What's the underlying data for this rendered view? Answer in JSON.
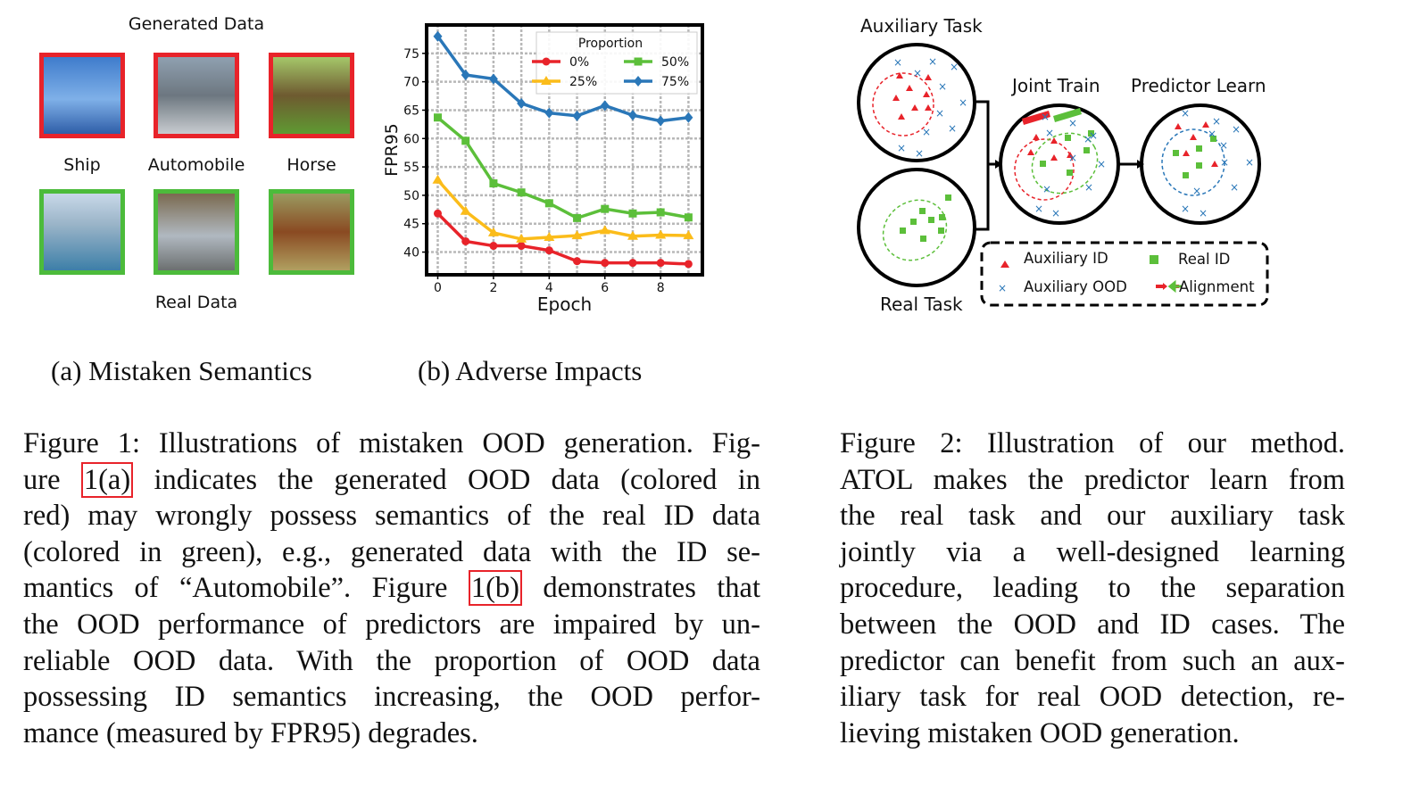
{
  "fig_a": {
    "title_top": "Generated Data",
    "title_bottom": "Real Data",
    "labels": [
      "Ship",
      "Automobile",
      "Horse"
    ],
    "generated_border_color": "#e8232a",
    "real_border_color": "#4cbb3b",
    "subcaption": "(a)  Mistaken Semantics"
  },
  "fig_b": {
    "subcaption": "(b)  Adverse Impacts"
  },
  "chart_data": {
    "type": "line",
    "xlabel": "Epoch",
    "ylabel": "FPR95",
    "x": [
      0,
      1,
      2,
      3,
      4,
      5,
      6,
      7,
      8,
      9
    ],
    "xticks": [
      0,
      2,
      4,
      6,
      8
    ],
    "yticks": [
      40,
      45,
      50,
      55,
      60,
      65,
      70,
      75
    ],
    "xlim": [
      -0.4,
      9.5
    ],
    "ylim": [
      36,
      80
    ],
    "grid": true,
    "legend_title": "Proportion",
    "legend_placement": "top-right",
    "series": [
      {
        "name": "0%",
        "color": "#e8232a",
        "marker": "circle",
        "values": [
          46.8,
          41.9,
          41.1,
          41.1,
          40.3,
          38.4,
          38.1,
          38.1,
          38.1,
          37.9
        ]
      },
      {
        "name": "25%",
        "color": "#fbbc1a",
        "marker": "triangle",
        "values": [
          52.7,
          47.2,
          43.4,
          42.3,
          42.6,
          42.9,
          43.8,
          42.8,
          43.0,
          42.9
        ]
      },
      {
        "name": "50%",
        "color": "#5cbf3a",
        "marker": "square",
        "values": [
          63.7,
          59.6,
          52.1,
          50.5,
          48.6,
          46.0,
          47.6,
          46.8,
          47.0,
          46.1
        ]
      },
      {
        "name": "75%",
        "color": "#2a77b8",
        "marker": "diamond",
        "values": [
          78.0,
          71.2,
          70.5,
          66.2,
          64.5,
          64.0,
          65.8,
          64.1,
          63.1,
          63.7
        ]
      }
    ]
  },
  "fig2": {
    "auxiliary_task": "Auxiliary Task",
    "real_task": "Real Task",
    "joint_train": "Joint Train",
    "predictor_learn": "Predictor Learn",
    "legend": {
      "aux_id": "Auxiliary ID",
      "real_id": "Real ID",
      "aux_ood": "Auxiliary OOD",
      "alignment": "Alignment"
    }
  },
  "caption1": {
    "lines": [
      [
        "Figure 1: Illustrations of mistaken OOD generation. Fig-"
      ],
      [
        "ure ",
        "1(a)",
        " indicates the generated OOD data (colored in"
      ],
      [
        "red) may wrongly possess semantics of the real ID data"
      ],
      [
        "(colored in green), e.g., generated data with the ID se-"
      ],
      [
        "mantics of “Automobile”. Figure ",
        "1(b)",
        " demonstrates that"
      ],
      [
        "the OOD performance of predictors are impaired by un-"
      ],
      [
        "reliable OOD data.  With the proportion of OOD data"
      ],
      [
        "possessing ID semantics increasing, the OOD perfor-"
      ],
      [
        "mance (measured by FPR95) degrades."
      ]
    ]
  },
  "caption2": {
    "lines": [
      "Figure 2:  Illustration of our method.",
      "ATOL makes the predictor learn from",
      "the real task and our auxiliary task",
      "jointly via a well-designed learning",
      "procedure, leading to the separation",
      "between the OOD and ID cases.  The",
      "predictor can benefit from such an aux-",
      "iliary task for real OOD detection, re-",
      "lieving mistaken OOD generation."
    ]
  }
}
